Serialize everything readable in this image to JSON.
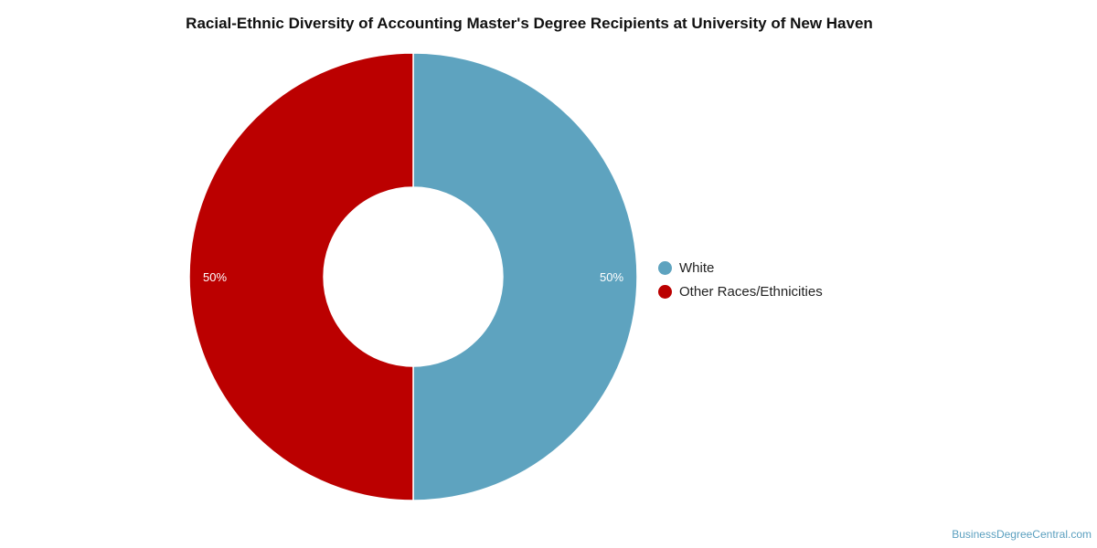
{
  "chart_data": {
    "type": "pie",
    "title": "Racial-Ethnic Diversity of Accounting Master's Degree Recipients at University of New Haven",
    "style": "donut",
    "legend_position": "right",
    "slices": [
      {
        "label": "White",
        "value": 50,
        "value_label": "50%",
        "color": "#5ea3bf"
      },
      {
        "label": "Other Races/Ethnicities",
        "value": 50,
        "value_label": "50%",
        "color": "#bb0000"
      }
    ]
  },
  "watermark": "BusinessDegreeCentral.com"
}
